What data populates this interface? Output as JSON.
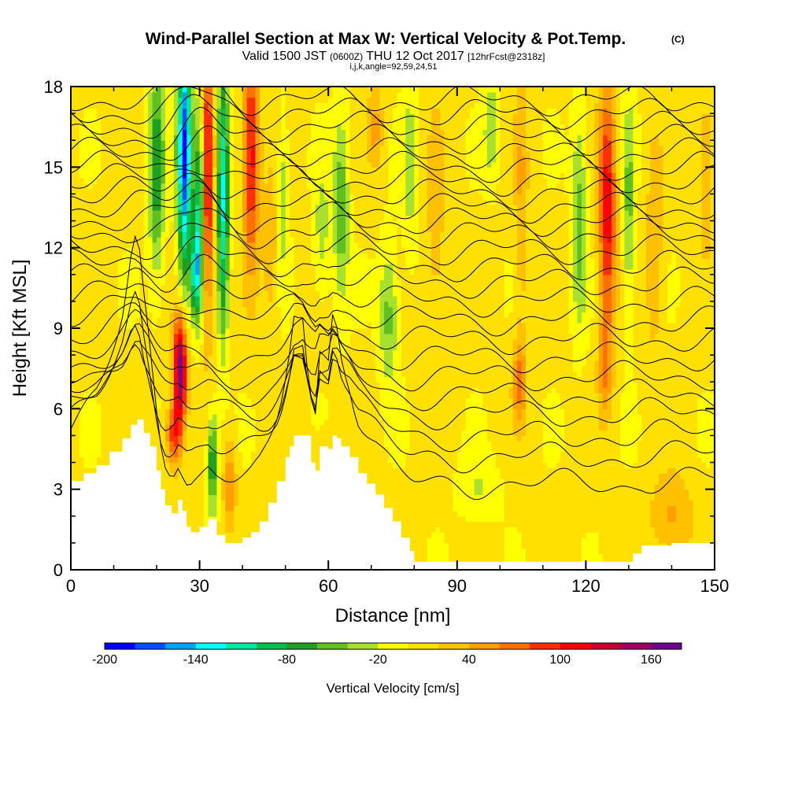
{
  "header": {
    "title": "Wind-Parallel Section at Max W: Vertical Velocity & Pot.Temp.",
    "copyright": "(C)",
    "valid_prefix": "Valid 1500 JST",
    "valid_utc": "(0600Z)",
    "valid_date": "THU 12 Oct 2017",
    "forecast": "[12hrFcst@2318z]",
    "grid_info": "i,j,k,angle=92,59,24,51"
  },
  "chart_data": {
    "type": "heatmap",
    "xlabel": "Distance [nm]",
    "ylabel": "Height [Kft MSL]",
    "xlim": [
      0,
      150
    ],
    "ylim": [
      0,
      18
    ],
    "x_ticks": [
      "0",
      "30",
      "60",
      "90",
      "120",
      "150"
    ],
    "y_ticks": [
      "0",
      "3",
      "6",
      "9",
      "12",
      "15",
      "18"
    ],
    "colorbar": {
      "label": "Vertical Velocity [cm/s]",
      "ticks": [
        "-200",
        "-140",
        "-80",
        "-20",
        "40",
        "100",
        "160"
      ],
      "min": -200,
      "max": 180,
      "step": 20,
      "colors": [
        "#0000ff",
        "#0050ff",
        "#00a0ff",
        "#00ffff",
        "#00e8a0",
        "#00c050",
        "#20a020",
        "#60c020",
        "#a8e030",
        "#ffff00",
        "#ffe000",
        "#ffc000",
        "#ffa000",
        "#ff7000",
        "#ff3000",
        "#ff0000",
        "#c80030",
        "#a00060",
        "#700090"
      ]
    },
    "terrain": [
      [
        0,
        3.3
      ],
      [
        3,
        3.6
      ],
      [
        6,
        3.9
      ],
      [
        9,
        4.4
      ],
      [
        12,
        4.9
      ],
      [
        14,
        5.4
      ],
      [
        15.5,
        5.6
      ],
      [
        17,
        5.1
      ],
      [
        18.5,
        4.6
      ],
      [
        20,
        3.7
      ],
      [
        21,
        3.0
      ],
      [
        22,
        2.4
      ],
      [
        23.5,
        2.1
      ],
      [
        25,
        2.6
      ],
      [
        26,
        2.2
      ],
      [
        27,
        1.6
      ],
      [
        28,
        1.4
      ],
      [
        30,
        1.6
      ],
      [
        32,
        1.9
      ],
      [
        34,
        1.3
      ],
      [
        36,
        1.0
      ],
      [
        38,
        1.0
      ],
      [
        40,
        1.2
      ],
      [
        42,
        1.4
      ],
      [
        44,
        1.8
      ],
      [
        46,
        2.5
      ],
      [
        48,
        3.3
      ],
      [
        50,
        4.2
      ],
      [
        51,
        4.6
      ],
      [
        52,
        5.0
      ],
      [
        54,
        5.0
      ],
      [
        56,
        4.0
      ],
      [
        57,
        3.7
      ],
      [
        58,
        4.6
      ],
      [
        60,
        4.5
      ],
      [
        61,
        5.0
      ],
      [
        62,
        4.9
      ],
      [
        63,
        4.6
      ],
      [
        65,
        4.2
      ],
      [
        67,
        3.6
      ],
      [
        69,
        3.2
      ],
      [
        71,
        2.8
      ],
      [
        73,
        2.3
      ],
      [
        75,
        1.8
      ],
      [
        77,
        1.2
      ],
      [
        79,
        0.7
      ],
      [
        80,
        0.3
      ],
      [
        94,
        0.3
      ],
      [
        100,
        0.3
      ],
      [
        129,
        0.3
      ],
      [
        131,
        0.6
      ],
      [
        133,
        0.9
      ],
      [
        140,
        1.0
      ],
      [
        150,
        1.0
      ]
    ],
    "w_features": [
      {
        "x": 26.5,
        "y": 15.5,
        "sx": 1.6,
        "sy": 4.5,
        "w": -190
      },
      {
        "x": 30.0,
        "y": 13.5,
        "sx": 1.3,
        "sy": 3.5,
        "w": -120
      },
      {
        "x": 20.0,
        "y": 15.0,
        "sx": 1.8,
        "sy": 4.0,
        "w": -80
      },
      {
        "x": 31.8,
        "y": 14.5,
        "sx": 1.3,
        "sy": 5.0,
        "w": 120
      },
      {
        "x": 35.5,
        "y": 14.0,
        "sx": 1.3,
        "sy": 5.0,
        "w": -130
      },
      {
        "x": 29.0,
        "y": 11.0,
        "sx": 1.0,
        "sy": 1.5,
        "w": -100
      },
      {
        "x": 25.5,
        "y": 7.5,
        "sx": 1.5,
        "sy": 1.9,
        "w": 180
      },
      {
        "x": 24.0,
        "y": 5.0,
        "sx": 1.8,
        "sy": 1.2,
        "w": 90
      },
      {
        "x": 33.0,
        "y": 4.0,
        "sx": 1.2,
        "sy": 1.8,
        "w": -90
      },
      {
        "x": 37.0,
        "y": 3.2,
        "sx": 1.4,
        "sy": 1.5,
        "w": 60
      },
      {
        "x": 42.0,
        "y": 15.5,
        "sx": 1.8,
        "sy": 4.0,
        "w": 110
      },
      {
        "x": 46.5,
        "y": 12.0,
        "sx": 1.8,
        "sy": 3.0,
        "w": 30
      },
      {
        "x": 49.5,
        "y": 14.0,
        "sx": 1.3,
        "sy": 3.0,
        "w": -40
      },
      {
        "x": 58.5,
        "y": 12.5,
        "sx": 2.0,
        "sy": 2.5,
        "w": -35
      },
      {
        "x": 63.0,
        "y": 13.5,
        "sx": 1.8,
        "sy": 3.5,
        "w": -60
      },
      {
        "x": 74.0,
        "y": 9.5,
        "sx": 2.2,
        "sy": 2.5,
        "w": -55
      },
      {
        "x": 71.0,
        "y": 16.5,
        "sx": 1.8,
        "sy": 1.5,
        "w": 40
      },
      {
        "x": 79.0,
        "y": 15.0,
        "sx": 1.8,
        "sy": 3.5,
        "w": -35
      },
      {
        "x": 85.0,
        "y": 13.0,
        "sx": 2.0,
        "sy": 4.0,
        "w": 30
      },
      {
        "x": 98.0,
        "y": 16.5,
        "sx": 1.8,
        "sy": 2.0,
        "w": -40
      },
      {
        "x": 105.0,
        "y": 14.0,
        "sx": 1.5,
        "sy": 5.5,
        "w": 35
      },
      {
        "x": 104.5,
        "y": 7.0,
        "sx": 1.5,
        "sy": 1.5,
        "w": 60
      },
      {
        "x": 118.5,
        "y": 13.0,
        "sx": 1.8,
        "sy": 4.0,
        "w": -55
      },
      {
        "x": 125.0,
        "y": 13.5,
        "sx": 2.0,
        "sy": 4.5,
        "w": 110
      },
      {
        "x": 124.5,
        "y": 7.5,
        "sx": 1.6,
        "sy": 1.8,
        "w": 50
      },
      {
        "x": 130.0,
        "y": 13.5,
        "sx": 1.5,
        "sy": 4.0,
        "w": -50
      },
      {
        "x": 136.0,
        "y": 12.0,
        "sx": 2.0,
        "sy": 4.0,
        "w": 35
      },
      {
        "x": 148.0,
        "y": 15.0,
        "sx": 2.0,
        "sy": 3.0,
        "w": 35
      },
      {
        "x": 60.0,
        "y": 2.5,
        "sx": 4.0,
        "sy": 2.0,
        "w": 25
      },
      {
        "x": 95.0,
        "y": 3.0,
        "sx": 5.0,
        "sy": 1.2,
        "w": -25
      },
      {
        "x": 140.0,
        "y": 2.0,
        "sx": 5.0,
        "sy": 1.5,
        "w": 40
      }
    ],
    "isentropes": [
      {
        "base": 3.2,
        "label": "",
        "label_x": null
      },
      {
        "base": 4.2,
        "label": "",
        "label_x": null
      },
      {
        "base": 5.0,
        "label": "",
        "label_x": null
      },
      {
        "base": 5.8,
        "label": "",
        "label_x": null
      },
      {
        "base": 6.5,
        "label": "",
        "label_x": null
      },
      {
        "base": 7.2,
        "label": "",
        "label_x": null
      },
      {
        "base": 7.9,
        "label": "",
        "label_x": null
      },
      {
        "base": 8.6,
        "label": "",
        "label_x": null
      },
      {
        "base": 9.3,
        "label": "",
        "label_x": null
      },
      {
        "base": 10.0,
        "label": "",
        "label_x": null
      },
      {
        "base": 10.7,
        "label": "",
        "label_x": null
      },
      {
        "base": 11.3,
        "label": "",
        "label_x": null
      },
      {
        "base": 11.9,
        "label": "",
        "label_x": null
      },
      {
        "base": 12.5,
        "label": "",
        "label_x": null
      },
      {
        "base": 13.0,
        "label": "",
        "label_x": null
      },
      {
        "base": 13.5,
        "label": "",
        "label_x": null
      },
      {
        "base": 14.0,
        "label": "",
        "label_x": null
      },
      {
        "base": 14.5,
        "label": "",
        "label_x": null
      },
      {
        "base": 15.0,
        "label": "",
        "label_x": null
      },
      {
        "base": 15.5,
        "label": "",
        "label_x": null
      },
      {
        "base": 16.0,
        "label": "",
        "label_x": null
      },
      {
        "base": 16.5,
        "label": "",
        "label_x": null
      },
      {
        "base": 17.0,
        "label": "",
        "label_x": null
      },
      {
        "base": 17.5,
        "label": "",
        "label_x": null
      }
    ],
    "grid": false
  }
}
